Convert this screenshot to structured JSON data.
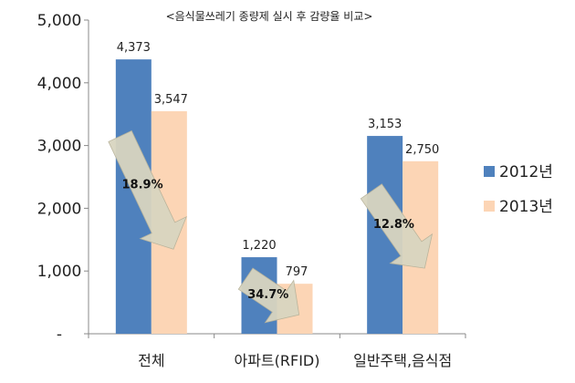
{
  "chart_data": {
    "type": "bar",
    "title": "<음식물쓰레기 종량제 실시 후 감량율 비교>",
    "categories": [
      "전체",
      "아파트(RFID)",
      "일반주택,음식점"
    ],
    "series": [
      {
        "name": "2012년",
        "values": [
          4373,
          1220,
          3153
        ],
        "color": "#4f81bd"
      },
      {
        "name": "2013년",
        "values": [
          3547,
          797,
          2750
        ],
        "color": "#fcd5b5"
      }
    ],
    "value_labels": [
      [
        "4,373",
        "1,220",
        "3,153"
      ],
      [
        "3,547",
        "797",
        "2,750"
      ]
    ],
    "reduction_labels": [
      "18.9%",
      "34.7%",
      "12.8%"
    ],
    "ylim": [
      0,
      5000
    ],
    "y_ticks": [
      "-",
      "1,000",
      "2,000",
      "3,000",
      "4,000",
      "5,000"
    ],
    "y_tick_values": [
      0,
      1000,
      2000,
      3000,
      4000,
      5000
    ],
    "grid": false,
    "legend_position": "right",
    "arrow_color": "#d9d5c0"
  }
}
